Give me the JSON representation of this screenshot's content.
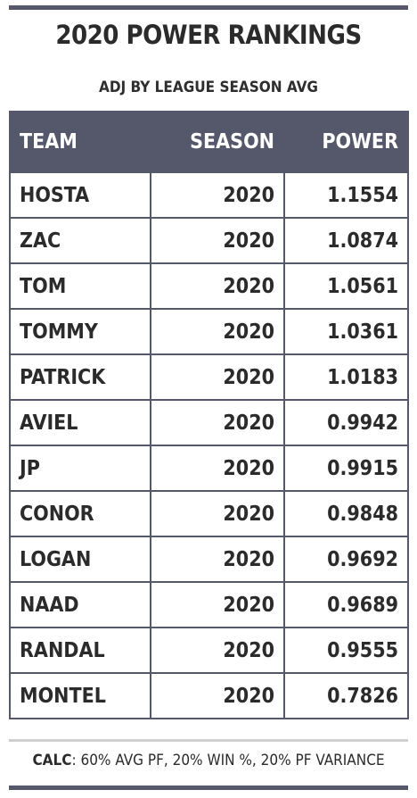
{
  "header": {
    "title": "2020 POWER RANKINGS",
    "subtitle": "ADJ BY LEAGUE SEASON AVG"
  },
  "table": {
    "columns": [
      "TEAM",
      "SEASON",
      "POWER"
    ],
    "rows": [
      [
        "HOSTA",
        "2020",
        "1.1554"
      ],
      [
        "ZAC",
        "2020",
        "1.0874"
      ],
      [
        "TOM",
        "2020",
        "1.0561"
      ],
      [
        "TOMMY",
        "2020",
        "1.0361"
      ],
      [
        "PATRICK",
        "2020",
        "1.0183"
      ],
      [
        "AVIEL",
        "2020",
        "0.9942"
      ],
      [
        "JP",
        "2020",
        "0.9915"
      ],
      [
        "CONOR",
        "2020",
        "0.9848"
      ],
      [
        "LOGAN",
        "2020",
        "0.9692"
      ],
      [
        "NAAD",
        "2020",
        "0.9689"
      ],
      [
        "RANDAL",
        "2020",
        "0.9555"
      ],
      [
        "MONTEL",
        "2020",
        "0.7826"
      ]
    ]
  },
  "footer": {
    "calc_label": "CALC",
    "calc_text": ": 60% AVG PF, 20% WIN %, 20% PF VARIANCE"
  },
  "colors": {
    "header_bg": "#55586b",
    "border": "#55586b"
  }
}
